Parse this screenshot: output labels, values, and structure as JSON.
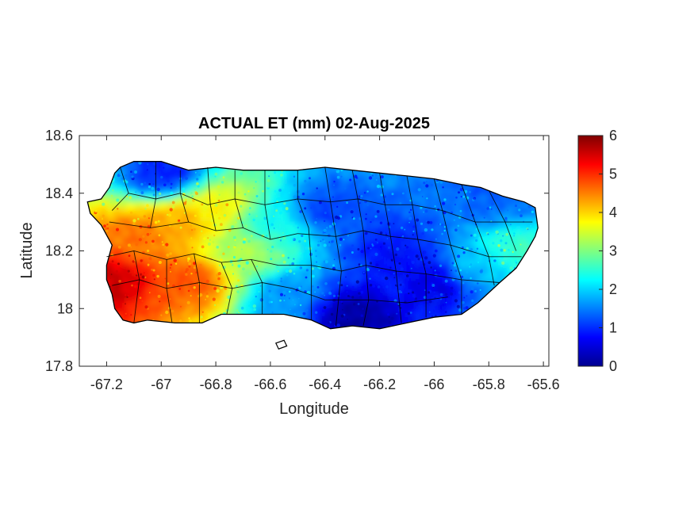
{
  "chart_data": {
    "type": "heatmap",
    "title": "ACTUAL ET (mm) 02-Aug-2025",
    "xlabel": "Longitude",
    "ylabel": "Latitude",
    "xlim": [
      -67.3,
      -65.58
    ],
    "ylim": [
      17.8,
      18.6
    ],
    "xticks": [
      "-67.2",
      "-67",
      "-66.8",
      "-66.6",
      "-66.4",
      "-66.2",
      "-66",
      "-65.8",
      "-65.6"
    ],
    "yticks": [
      "17.8",
      "18",
      "18.2",
      "18.4",
      "18.6"
    ],
    "colorbar": {
      "colormap": "jet",
      "min": 0,
      "max": 6,
      "ticks": [
        "0",
        "1",
        "2",
        "3",
        "4",
        "5",
        "6"
      ]
    },
    "field_centers": [
      {
        "lon": -67.18,
        "lat": 18.1,
        "value": 5.6
      },
      {
        "lon": -67.1,
        "lat": 18.25,
        "value": 4.6
      },
      {
        "lon": -66.95,
        "lat": 18.3,
        "value": 4.3
      },
      {
        "lon": -66.9,
        "lat": 18.1,
        "value": 4.8
      },
      {
        "lon": -66.8,
        "lat": 18.35,
        "value": 3.8
      },
      {
        "lon": -66.7,
        "lat": 18.2,
        "value": 3.2
      },
      {
        "lon": -66.6,
        "lat": 18.3,
        "value": 2.3
      },
      {
        "lon": -66.55,
        "lat": 18.05,
        "value": 1.6
      },
      {
        "lon": -66.4,
        "lat": 18.35,
        "value": 1.1
      },
      {
        "lon": -66.3,
        "lat": 17.98,
        "value": 0.2
      },
      {
        "lon": -66.15,
        "lat": 18.2,
        "value": 0.8
      },
      {
        "lon": -66.0,
        "lat": 18.1,
        "value": 0.6
      },
      {
        "lon": -65.85,
        "lat": 18.15,
        "value": 1.9
      },
      {
        "lon": -65.72,
        "lat": 18.2,
        "value": 2.6
      },
      {
        "lon": -65.8,
        "lat": 18.38,
        "value": 1.3
      },
      {
        "lon": -67.0,
        "lat": 18.47,
        "value": 0.9
      }
    ]
  }
}
